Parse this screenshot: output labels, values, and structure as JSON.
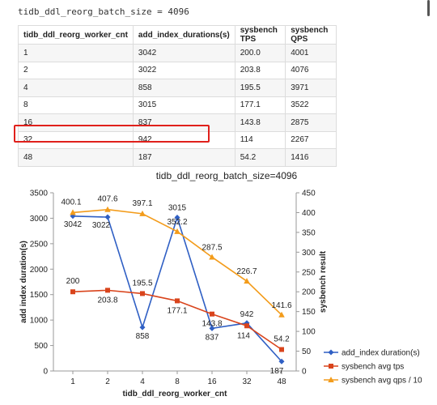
{
  "page_heading": "tidb_ddl_reorg_batch_size = 4096",
  "table": {
    "headers": [
      "tidb_ddl_reorg_worker_cnt",
      "add_index_durations(s)",
      "sysbench TPS",
      "sysbench QPS"
    ],
    "rows": [
      [
        "1",
        "3042",
        "200.0",
        "4001"
      ],
      [
        "2",
        "3022",
        "203.8",
        "4076"
      ],
      [
        "4",
        "858",
        "195.5",
        "3971"
      ],
      [
        "8",
        "3015",
        "177.1",
        "3522"
      ],
      [
        "16",
        "837",
        "143.8",
        "2875"
      ],
      [
        "32",
        "942",
        "114",
        "2267"
      ],
      [
        "48",
        "187",
        "54.2",
        "1416"
      ]
    ],
    "highlighted_row": 5,
    "highlight_color": "#e0201b"
  },
  "chart_data": {
    "type": "line",
    "title": "tidb_ddl_reorg_batch_size=4096",
    "xlabel": "tidb_ddl_reorg_worker_cnt",
    "ylabel": "add index duration(s)",
    "y2label": "sysbench result",
    "categories": [
      "1",
      "2",
      "4",
      "8",
      "16",
      "32",
      "48"
    ],
    "ylim": [
      0,
      3500
    ],
    "yticks": [
      "0",
      "500",
      "1000",
      "1500",
      "2000",
      "2500",
      "3000",
      "3500"
    ],
    "y2lim": [
      0,
      450
    ],
    "y2ticks": [
      "0",
      "50",
      "100",
      "150",
      "200",
      "250",
      "300",
      "350",
      "400",
      "450"
    ],
    "series": [
      {
        "name": "add_index duration(s)",
        "axis": "left",
        "color": "#2f5fc4",
        "marker": "diamond",
        "values": [
          3042,
          3022,
          858,
          3015,
          837,
          942,
          187
        ],
        "labels": [
          "3042",
          "3022",
          "858",
          "3015",
          "837",
          "942",
          "187"
        ]
      },
      {
        "name": "sysbench avg tps",
        "axis": "right",
        "color": "#d9441c",
        "marker": "square",
        "values": [
          200,
          203.8,
          195.5,
          177.1,
          143.8,
          114,
          54.2
        ],
        "labels": [
          "200",
          "203.8",
          "195.5",
          "177.1",
          "143.8",
          "114",
          "54.2"
        ]
      },
      {
        "name": "sysbench avg qps / 10",
        "axis": "right",
        "color": "#f39c1b",
        "marker": "triangle",
        "values": [
          400.1,
          407.6,
          397.1,
          352.2,
          287.5,
          226.7,
          141.6
        ],
        "labels": [
          "400.1",
          "407.6",
          "397.1",
          "352.2",
          "287.5",
          "226.7",
          "141.6"
        ]
      }
    ],
    "grid": false,
    "legend_position": "right"
  }
}
